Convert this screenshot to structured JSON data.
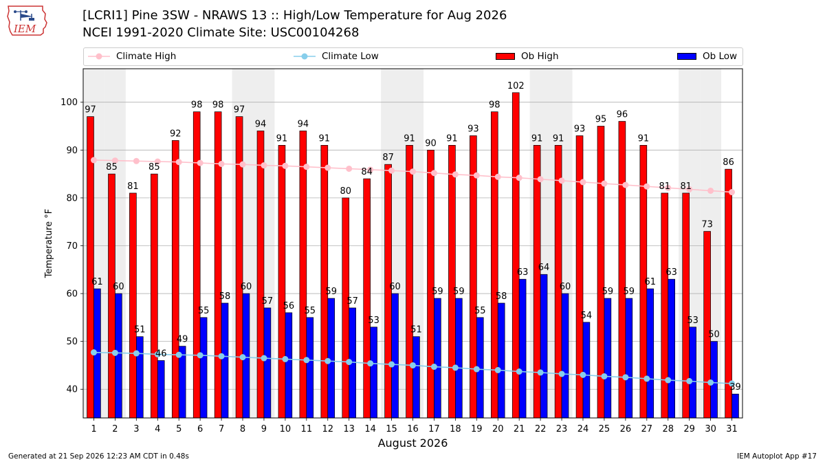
{
  "header": {
    "title_line1": "[LCRI1] Pine 3SW - NRAWS 13 :: High/Low Temperature for Aug 2026",
    "title_line2": "NCEI 1991-2020 Climate Site: USC00104268",
    "logo_text": "IEM"
  },
  "legend": {
    "climate_high": "Climate High",
    "climate_low": "Climate Low",
    "ob_high": "Ob High",
    "ob_low": "Ob Low"
  },
  "colors": {
    "ob_high": "#ff0000",
    "ob_low": "#0000ff",
    "climate_high": "#ffc0cb",
    "climate_low": "#87ceeb",
    "weekend_band": "#eeeeee",
    "grid": "#b0b0b0"
  },
  "footer": {
    "generated": "Generated at 21 Sep 2026 12:23 AM CDT in 0.48s",
    "app": "IEM Autoplot App #17"
  },
  "chart_data": {
    "type": "bar",
    "xlabel": "August 2026",
    "ylabel": "Temperature °F",
    "ylim": [
      34,
      107
    ],
    "yticks": [
      40,
      50,
      60,
      70,
      80,
      90,
      100
    ],
    "grid": true,
    "legend_position": "top",
    "categories": [
      1,
      2,
      3,
      4,
      5,
      6,
      7,
      8,
      9,
      10,
      11,
      12,
      13,
      14,
      15,
      16,
      17,
      18,
      19,
      20,
      21,
      22,
      23,
      24,
      25,
      26,
      27,
      28,
      29,
      30,
      31
    ],
    "shaded_days": [
      1,
      2,
      8,
      9,
      15,
      16,
      22,
      23,
      29,
      30
    ],
    "series": [
      {
        "name": "Ob High",
        "type": "bar",
        "values": [
          97,
          85,
          81,
          85,
          92,
          98,
          98,
          97,
          94,
          91,
          94,
          91,
          80,
          84,
          87,
          91,
          90,
          91,
          93,
          98,
          102,
          91,
          91,
          93,
          95,
          96,
          91,
          81,
          81,
          73,
          86
        ]
      },
      {
        "name": "Ob Low",
        "type": "bar",
        "values": [
          61,
          60,
          51,
          46,
          49,
          55,
          58,
          60,
          57,
          56,
          55,
          59,
          57,
          53,
          60,
          51,
          59,
          59,
          55,
          58,
          63,
          64,
          60,
          54,
          59,
          59,
          61,
          63,
          53,
          50,
          39
        ]
      },
      {
        "name": "Climate High",
        "type": "line",
        "values": [
          87.9,
          87.8,
          87.7,
          87.6,
          87.5,
          87.3,
          87.1,
          87.0,
          86.8,
          86.7,
          86.5,
          86.3,
          86.1,
          85.9,
          85.7,
          85.5,
          85.2,
          84.9,
          84.7,
          84.4,
          84.2,
          83.9,
          83.6,
          83.3,
          83.0,
          82.7,
          82.4,
          82.1,
          81.8,
          81.5,
          81.2
        ]
      },
      {
        "name": "Climate Low",
        "type": "line",
        "values": [
          47.7,
          47.6,
          47.5,
          47.3,
          47.2,
          47.1,
          46.9,
          46.7,
          46.5,
          46.3,
          46.1,
          45.9,
          45.7,
          45.4,
          45.2,
          45.0,
          44.7,
          44.5,
          44.2,
          44.0,
          43.7,
          43.5,
          43.2,
          43.0,
          42.7,
          42.5,
          42.2,
          41.9,
          41.7,
          41.4,
          41.2
        ]
      }
    ]
  }
}
